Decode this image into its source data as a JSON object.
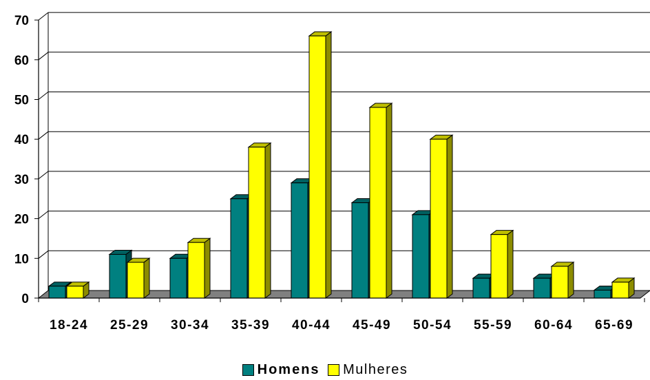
{
  "chart_data": {
    "type": "bar",
    "categories": [
      "18-24",
      "25-29",
      "30-34",
      "35-39",
      "40-44",
      "45-49",
      "50-54",
      "55-59",
      "60-64",
      "65-69"
    ],
    "series": [
      {
        "name": "Homens",
        "color": "#008080",
        "values": [
          3,
          11,
          10,
          25,
          29,
          24,
          21,
          5,
          5,
          2
        ]
      },
      {
        "name": "Mulheres",
        "color": "#FFFF00",
        "values": [
          3,
          9,
          14,
          38,
          66,
          48,
          40,
          16,
          8,
          4
        ]
      }
    ],
    "yticks": [
      "0",
      "10",
      "20",
      "30",
      "40",
      "50",
      "60",
      "70"
    ],
    "ylim": [
      0,
      70
    ],
    "grid": true,
    "legend_position": "bottom",
    "style": "3d-clustered-bar"
  }
}
